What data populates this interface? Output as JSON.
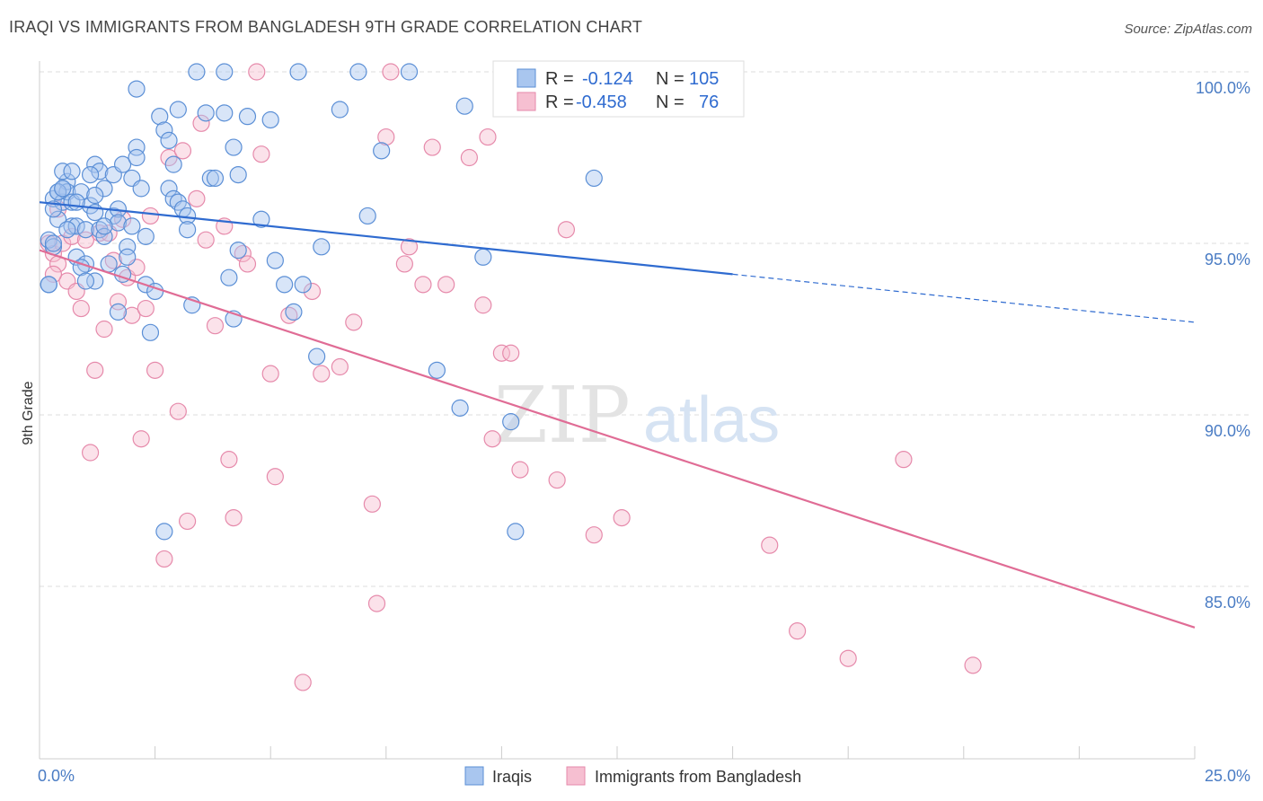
{
  "title": "IRAQI VS IMMIGRANTS FROM BANGLADESH 9TH GRADE CORRELATION CHART",
  "source": "Source: ZipAtlas.com",
  "watermark": {
    "zip": "ZIP",
    "atlas": "atlas"
  },
  "colors": {
    "iraqi_fill": "#a9c6ef",
    "iraqi_stroke": "#5b8fd6",
    "iraqi_line": "#2f6bd0",
    "bang_fill": "#f6bfd1",
    "bang_stroke": "#e68aab",
    "bang_line": "#e06c95",
    "grid": "#dddddd",
    "tick_text": "#4a7cc4"
  },
  "legend_top": {
    "rows": [
      {
        "r_label": "R =",
        "r_value": "-0.124",
        "n_label": "N =",
        "n_value": "105"
      },
      {
        "r_label": "R =",
        "r_value": "-0.458",
        "n_label": "N =",
        "n_value": "76"
      }
    ]
  },
  "legend_bottom": {
    "iraqi": "Iraqis",
    "bangladesh": "Immigrants from Bangladesh"
  },
  "chart_data": {
    "type": "scatter",
    "title": "IRAQI VS IMMIGRANTS FROM BANGLADESH 9TH GRADE CORRELATION CHART",
    "xlabel": "",
    "ylabel": "9th Grade",
    "xlim": [
      0,
      25
    ],
    "ylim": [
      80.0,
      101.0
    ],
    "x_tick_labels": [
      "0.0%",
      "25.0%"
    ],
    "y_ticks": [
      100,
      95,
      90,
      85
    ],
    "y_tick_labels": [
      "100.0%",
      "95.0%",
      "90.0%",
      "85.0%"
    ],
    "grid": true,
    "legend_position": "top-center",
    "series": [
      {
        "name": "Iraqis",
        "r": -0.124,
        "n": 105,
        "trend": {
          "x0": 0,
          "y0": 96.2,
          "x1": 15,
          "y1": 94.1,
          "dash_to_x": 25,
          "dash_to_y": 92.7
        },
        "points": [
          [
            0.2,
            95.1
          ],
          [
            0.3,
            96.3
          ],
          [
            0.3,
            94.9
          ],
          [
            0.4,
            96.5
          ],
          [
            0.4,
            95.7
          ],
          [
            0.5,
            96.6
          ],
          [
            0.5,
            96.2
          ],
          [
            0.6,
            96.8
          ],
          [
            0.6,
            96.5
          ],
          [
            0.7,
            96.2
          ],
          [
            0.7,
            95.5
          ],
          [
            0.8,
            94.6
          ],
          [
            0.8,
            95.5
          ],
          [
            0.9,
            96.5
          ],
          [
            1.0,
            95.4
          ],
          [
            1.0,
            94.4
          ],
          [
            1.1,
            96.1
          ],
          [
            1.2,
            95.9
          ],
          [
            1.2,
            97.3
          ],
          [
            1.2,
            93.9
          ],
          [
            1.3,
            95.4
          ],
          [
            1.3,
            97.1
          ],
          [
            1.4,
            96.6
          ],
          [
            1.4,
            95.2
          ],
          [
            1.5,
            94.4
          ],
          [
            1.6,
            97.0
          ],
          [
            1.6,
            95.8
          ],
          [
            1.7,
            96.0
          ],
          [
            1.7,
            95.6
          ],
          [
            1.7,
            93.0
          ],
          [
            1.8,
            97.3
          ],
          [
            1.8,
            94.1
          ],
          [
            1.9,
            94.9
          ],
          [
            1.9,
            94.6
          ],
          [
            2.0,
            95.5
          ],
          [
            2.0,
            96.9
          ],
          [
            2.1,
            97.8
          ],
          [
            2.1,
            97.5
          ],
          [
            2.1,
            99.5
          ],
          [
            2.2,
            96.6
          ],
          [
            2.3,
            95.2
          ],
          [
            2.3,
            93.8
          ],
          [
            2.4,
            92.4
          ],
          [
            2.5,
            93.6
          ],
          [
            2.6,
            98.7
          ],
          [
            2.7,
            86.6
          ],
          [
            2.7,
            98.3
          ],
          [
            2.8,
            98.0
          ],
          [
            2.8,
            96.6
          ],
          [
            2.9,
            96.3
          ],
          [
            2.9,
            97.3
          ],
          [
            3.0,
            96.2
          ],
          [
            3.0,
            98.9
          ],
          [
            3.1,
            96.0
          ],
          [
            3.2,
            95.8
          ],
          [
            3.2,
            95.4
          ],
          [
            3.3,
            93.2
          ],
          [
            3.4,
            100.0
          ],
          [
            3.6,
            98.8
          ],
          [
            3.7,
            96.9
          ],
          [
            3.8,
            96.9
          ],
          [
            4.0,
            100.0
          ],
          [
            4.0,
            98.8
          ],
          [
            4.1,
            94.0
          ],
          [
            4.2,
            92.8
          ],
          [
            4.2,
            97.8
          ],
          [
            4.3,
            94.8
          ],
          [
            4.3,
            97.0
          ],
          [
            4.5,
            98.7
          ],
          [
            4.8,
            95.7
          ],
          [
            5.0,
            98.6
          ],
          [
            5.1,
            94.5
          ],
          [
            5.3,
            93.8
          ],
          [
            5.5,
            93.0
          ],
          [
            5.6,
            100.0
          ],
          [
            5.7,
            93.8
          ],
          [
            6.0,
            91.7
          ],
          [
            6.1,
            94.9
          ],
          [
            6.5,
            98.9
          ],
          [
            6.9,
            100.0
          ],
          [
            7.1,
            95.8
          ],
          [
            7.4,
            97.7
          ],
          [
            8.0,
            100.0
          ],
          [
            8.6,
            91.3
          ],
          [
            9.1,
            90.2
          ],
          [
            9.2,
            99.0
          ],
          [
            9.6,
            94.6
          ],
          [
            10.2,
            89.8
          ],
          [
            10.3,
            86.6
          ],
          [
            12.0,
            96.9
          ],
          [
            0.2,
            93.8
          ],
          [
            0.3,
            95.0
          ],
          [
            0.3,
            96.0
          ],
          [
            0.4,
            96.5
          ],
          [
            0.5,
            97.1
          ],
          [
            0.5,
            96.6
          ],
          [
            0.6,
            95.4
          ],
          [
            0.7,
            97.1
          ],
          [
            0.8,
            96.2
          ],
          [
            0.9,
            94.3
          ],
          [
            1.0,
            93.9
          ],
          [
            1.1,
            97.0
          ],
          [
            1.2,
            96.4
          ],
          [
            1.4,
            95.5
          ],
          [
            0.2,
            93.8
          ]
        ]
      },
      {
        "name": "Immigrants from Bangladesh",
        "r": -0.458,
        "n": 76,
        "trend": {
          "x0": 0,
          "y0": 94.8,
          "x1": 25,
          "y1": 83.8
        },
        "points": [
          [
            0.2,
            95.0
          ],
          [
            0.3,
            94.7
          ],
          [
            0.4,
            94.4
          ],
          [
            0.5,
            95.0
          ],
          [
            0.6,
            93.9
          ],
          [
            0.7,
            95.2
          ],
          [
            0.8,
            93.6
          ],
          [
            0.9,
            93.1
          ],
          [
            1.0,
            95.1
          ],
          [
            1.1,
            88.9
          ],
          [
            1.2,
            91.3
          ],
          [
            1.3,
            95.3
          ],
          [
            1.4,
            92.5
          ],
          [
            1.5,
            95.3
          ],
          [
            1.6,
            94.5
          ],
          [
            1.7,
            93.3
          ],
          [
            1.8,
            95.7
          ],
          [
            1.9,
            94.0
          ],
          [
            2.0,
            92.9
          ],
          [
            2.1,
            94.3
          ],
          [
            2.2,
            89.3
          ],
          [
            2.3,
            93.1
          ],
          [
            2.4,
            95.8
          ],
          [
            2.5,
            91.3
          ],
          [
            2.7,
            85.8
          ],
          [
            2.8,
            97.5
          ],
          [
            3.0,
            90.1
          ],
          [
            3.1,
            97.7
          ],
          [
            3.2,
            86.9
          ],
          [
            3.4,
            96.3
          ],
          [
            3.5,
            98.5
          ],
          [
            3.6,
            95.1
          ],
          [
            3.8,
            92.6
          ],
          [
            4.0,
            95.5
          ],
          [
            4.1,
            88.7
          ],
          [
            4.2,
            87.0
          ],
          [
            4.4,
            94.7
          ],
          [
            4.5,
            94.4
          ],
          [
            4.7,
            100.0
          ],
          [
            4.8,
            97.6
          ],
          [
            5.0,
            91.2
          ],
          [
            5.1,
            88.2
          ],
          [
            5.4,
            92.9
          ],
          [
            5.7,
            82.2
          ],
          [
            5.9,
            93.6
          ],
          [
            6.1,
            91.2
          ],
          [
            6.5,
            91.4
          ],
          [
            6.8,
            92.7
          ],
          [
            7.2,
            87.4
          ],
          [
            7.3,
            84.5
          ],
          [
            7.5,
            98.1
          ],
          [
            7.6,
            100.0
          ],
          [
            7.9,
            94.4
          ],
          [
            8.0,
            94.9
          ],
          [
            8.3,
            93.8
          ],
          [
            8.5,
            97.8
          ],
          [
            8.8,
            93.8
          ],
          [
            9.3,
            97.5
          ],
          [
            9.6,
            93.2
          ],
          [
            9.7,
            98.1
          ],
          [
            9.8,
            89.3
          ],
          [
            10.0,
            91.8
          ],
          [
            10.2,
            91.8
          ],
          [
            10.4,
            88.4
          ],
          [
            11.2,
            88.1
          ],
          [
            11.4,
            95.4
          ],
          [
            11.8,
            100.0
          ],
          [
            12.0,
            86.5
          ],
          [
            12.6,
            87.0
          ],
          [
            15.8,
            86.2
          ],
          [
            16.4,
            83.7
          ],
          [
            17.5,
            82.9
          ],
          [
            18.7,
            88.7
          ],
          [
            20.2,
            82.7
          ],
          [
            0.3,
            94.1
          ],
          [
            0.4,
            96.0
          ]
        ]
      }
    ]
  }
}
